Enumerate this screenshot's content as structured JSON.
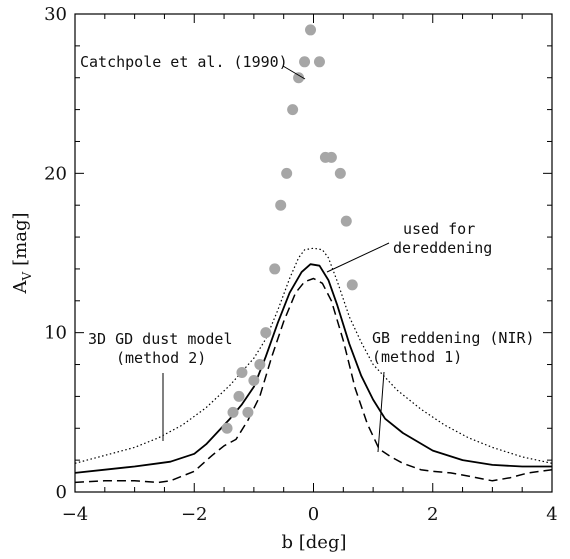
{
  "chart_data": {
    "type": "line",
    "xlabel": "b [deg]",
    "ylabel_main": "A",
    "ylabel_sub": "V",
    "ylabel_unit": "[mag]",
    "xlim": [
      -4,
      4
    ],
    "ylim": [
      0,
      30
    ],
    "xticks": [
      -4,
      -2,
      0,
      2,
      4
    ],
    "yticks": [
      0,
      10,
      20,
      30
    ],
    "grid": false,
    "colors": {
      "scatter": "#a6a6a6",
      "line": "#000000"
    },
    "series": [
      {
        "id": "method1",
        "style": "dashed",
        "x": [
          -4.0,
          -3.5,
          -3.0,
          -2.6,
          -2.4,
          -2.0,
          -1.7,
          -1.5,
          -1.3,
          -1.1,
          -0.9,
          -0.7,
          -0.5,
          -0.3,
          -0.15,
          0.0,
          0.15,
          0.3,
          0.5,
          0.7,
          0.9,
          1.1,
          1.3,
          1.5,
          1.8,
          2.0,
          2.3,
          2.6,
          3.0,
          3.3,
          3.6,
          4.0
        ],
        "y": [
          0.6,
          0.7,
          0.7,
          0.6,
          0.7,
          1.3,
          2.3,
          2.9,
          3.3,
          4.5,
          6.0,
          8.5,
          10.7,
          12.5,
          13.2,
          13.4,
          13.1,
          12.0,
          9.5,
          6.5,
          4.3,
          2.7,
          2.2,
          1.8,
          1.4,
          1.3,
          1.2,
          1.0,
          0.7,
          0.9,
          1.2,
          1.4
        ]
      },
      {
        "id": "dereddening",
        "style": "solid",
        "x": [
          -4.0,
          -3.5,
          -3.0,
          -2.6,
          -2.4,
          -2.0,
          -1.8,
          -1.6,
          -1.4,
          -1.2,
          -1.0,
          -0.8,
          -0.6,
          -0.4,
          -0.2,
          -0.05,
          0.1,
          0.25,
          0.4,
          0.6,
          0.8,
          1.0,
          1.2,
          1.5,
          2.0,
          2.5,
          3.0,
          3.5,
          4.0
        ],
        "y": [
          1.2,
          1.4,
          1.6,
          1.8,
          1.9,
          2.4,
          3.0,
          3.8,
          4.6,
          5.5,
          6.6,
          8.5,
          10.6,
          12.5,
          13.8,
          14.3,
          14.2,
          13.3,
          11.7,
          9.3,
          7.3,
          5.8,
          4.6,
          3.7,
          2.6,
          2.0,
          1.7,
          1.6,
          1.6
        ]
      },
      {
        "id": "method2",
        "style": "dotted",
        "x": [
          -4.0,
          -3.5,
          -3.0,
          -2.6,
          -2.2,
          -1.8,
          -1.4,
          -1.0,
          -0.8,
          -0.6,
          -0.4,
          -0.25,
          -0.15,
          0.0,
          0.15,
          0.25,
          0.4,
          0.6,
          0.8,
          1.0,
          1.4,
          1.8,
          2.2,
          2.6,
          3.0,
          3.5,
          4.0
        ],
        "y": [
          1.8,
          2.3,
          2.8,
          3.4,
          4.2,
          5.3,
          6.7,
          8.4,
          9.6,
          11.4,
          13.4,
          14.7,
          15.2,
          15.3,
          15.2,
          14.7,
          13.2,
          11.0,
          9.4,
          8.0,
          6.4,
          5.2,
          4.2,
          3.4,
          2.8,
          2.2,
          1.8
        ]
      }
    ],
    "scatter": {
      "id": "catchpole",
      "x": [
        -1.45,
        -1.35,
        -1.25,
        -1.2,
        -1.1,
        -1.0,
        -0.9,
        -0.8,
        -0.65,
        -0.55,
        -0.45,
        -0.35,
        -0.25,
        -0.15,
        -0.05,
        0.1,
        0.2,
        0.3,
        0.45,
        0.55,
        0.65
      ],
      "y": [
        4.0,
        5.0,
        6.0,
        7.5,
        5.0,
        7.0,
        8.0,
        10.0,
        14.0,
        18.0,
        20.0,
        24.0,
        26.0,
        27.0,
        29.0,
        27.0,
        21.0,
        21.0,
        20.0,
        17.0,
        13.0
      ]
    },
    "annotations": {
      "catchpole": "Catchpole et al. (1990)",
      "dereddening_1": "used for",
      "dereddening_2": "dereddening",
      "model_1": "3D GD dust model",
      "model_2": "(method 2)",
      "nir_1": "GB reddening (NIR)",
      "nir_2": "(method 1)"
    }
  }
}
